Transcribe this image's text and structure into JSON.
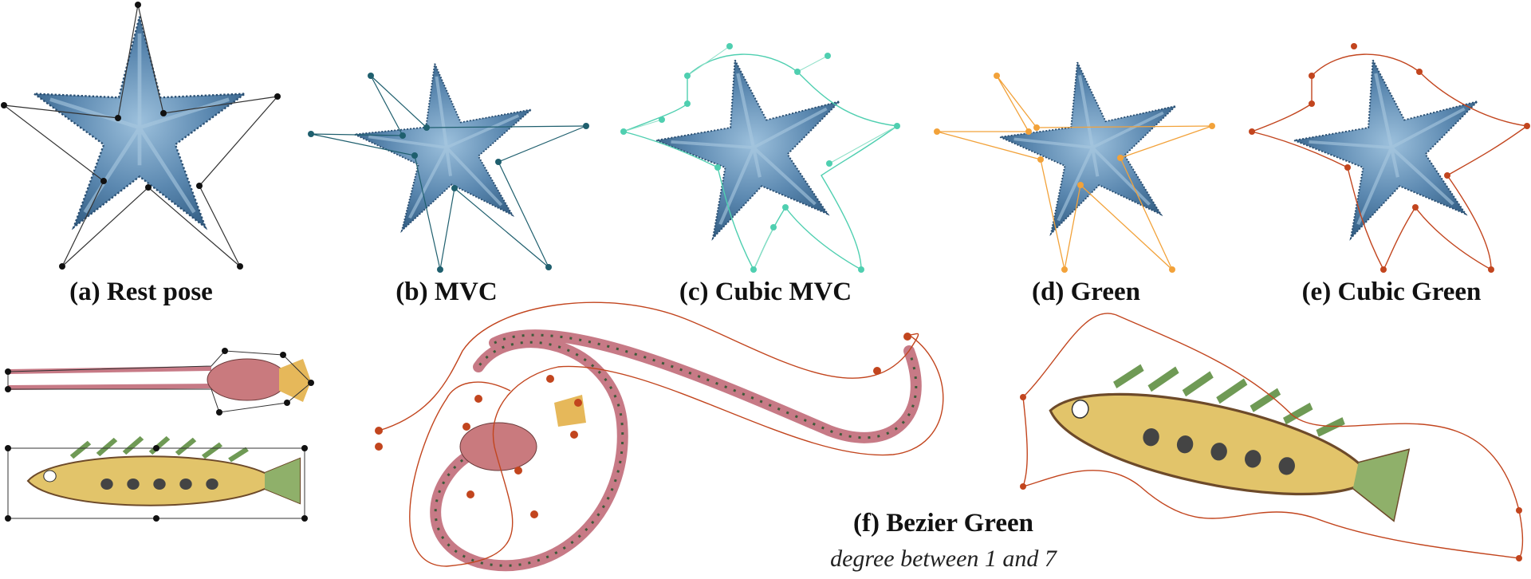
{
  "panels": [
    {
      "id": "a",
      "caption": "(a) Rest pose"
    },
    {
      "id": "b",
      "caption": "(b) MVC"
    },
    {
      "id": "c",
      "caption": "(c) Cubic MVC"
    },
    {
      "id": "d",
      "caption": "(d) Green"
    },
    {
      "id": "e",
      "caption": "(e) Cubic Green"
    },
    {
      "id": "f",
      "caption": "(f) Bezier Green",
      "subcaption": "degree between 1 and 7"
    }
  ],
  "colors": {
    "starfish": "#4f7ea6",
    "starfish_dark": "#2f5a80",
    "starfish_light": "#9cc0dc",
    "cage_black": "#111111",
    "cage_mvc": "#1f5f6e",
    "cage_cubic_mvc": "#4fcfb0",
    "cage_green": "#f2a23a",
    "cage_cubic_green": "#c2451e",
    "fish_body": "#e2c46a",
    "fish_fin": "#8fb06a",
    "fish_stripe": "#d98a9a"
  },
  "icons": [
    "starfish-illustration",
    "shrimp-illustration",
    "fish-illustration"
  ]
}
